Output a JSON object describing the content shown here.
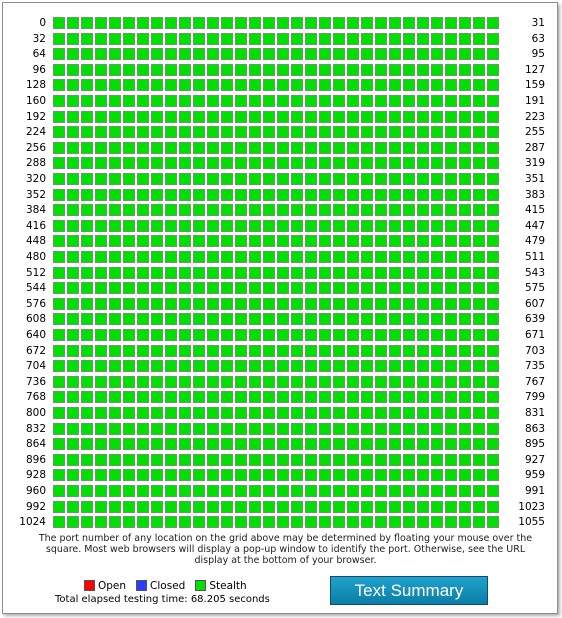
{
  "grid": {
    "columns": 32,
    "rows": [
      {
        "start": "0",
        "end": "31"
      },
      {
        "start": "32",
        "end": "63"
      },
      {
        "start": "64",
        "end": "95"
      },
      {
        "start": "96",
        "end": "127"
      },
      {
        "start": "128",
        "end": "159"
      },
      {
        "start": "160",
        "end": "191"
      },
      {
        "start": "192",
        "end": "223"
      },
      {
        "start": "224",
        "end": "255"
      },
      {
        "start": "256",
        "end": "287"
      },
      {
        "start": "288",
        "end": "319"
      },
      {
        "start": "320",
        "end": "351"
      },
      {
        "start": "352",
        "end": "383"
      },
      {
        "start": "384",
        "end": "415"
      },
      {
        "start": "416",
        "end": "447"
      },
      {
        "start": "448",
        "end": "479"
      },
      {
        "start": "480",
        "end": "511"
      },
      {
        "start": "512",
        "end": "543"
      },
      {
        "start": "544",
        "end": "575"
      },
      {
        "start": "576",
        "end": "607"
      },
      {
        "start": "608",
        "end": "639"
      },
      {
        "start": "640",
        "end": "671"
      },
      {
        "start": "672",
        "end": "703"
      },
      {
        "start": "704",
        "end": "735"
      },
      {
        "start": "736",
        "end": "767"
      },
      {
        "start": "768",
        "end": "799"
      },
      {
        "start": "800",
        "end": "831"
      },
      {
        "start": "832",
        "end": "863"
      },
      {
        "start": "864",
        "end": "895"
      },
      {
        "start": "896",
        "end": "927"
      },
      {
        "start": "928",
        "end": "959"
      },
      {
        "start": "960",
        "end": "991"
      },
      {
        "start": "992",
        "end": "1023"
      },
      {
        "start": "1024",
        "end": "1055"
      }
    ],
    "cell_status": "stealth"
  },
  "note": "The port number of any location on the grid above may be determined by floating your mouse over the square. Most web browsers will display a pop-up window to identify the port. Otherwise, see the URL display at the bottom of your browser.",
  "legend": [
    {
      "label": "Open",
      "color": "#ff0000"
    },
    {
      "label": "Closed",
      "color": "#2b3cff"
    },
    {
      "label": "Stealth",
      "color": "#00e000"
    }
  ],
  "elapsed": "Total elapsed testing time: 68.205 seconds",
  "summary_button": "Text Summary",
  "colors": {
    "stealth": "#00e000",
    "open": "#ff0000",
    "closed": "#2b3cff",
    "button": "#0f8fbc"
  }
}
